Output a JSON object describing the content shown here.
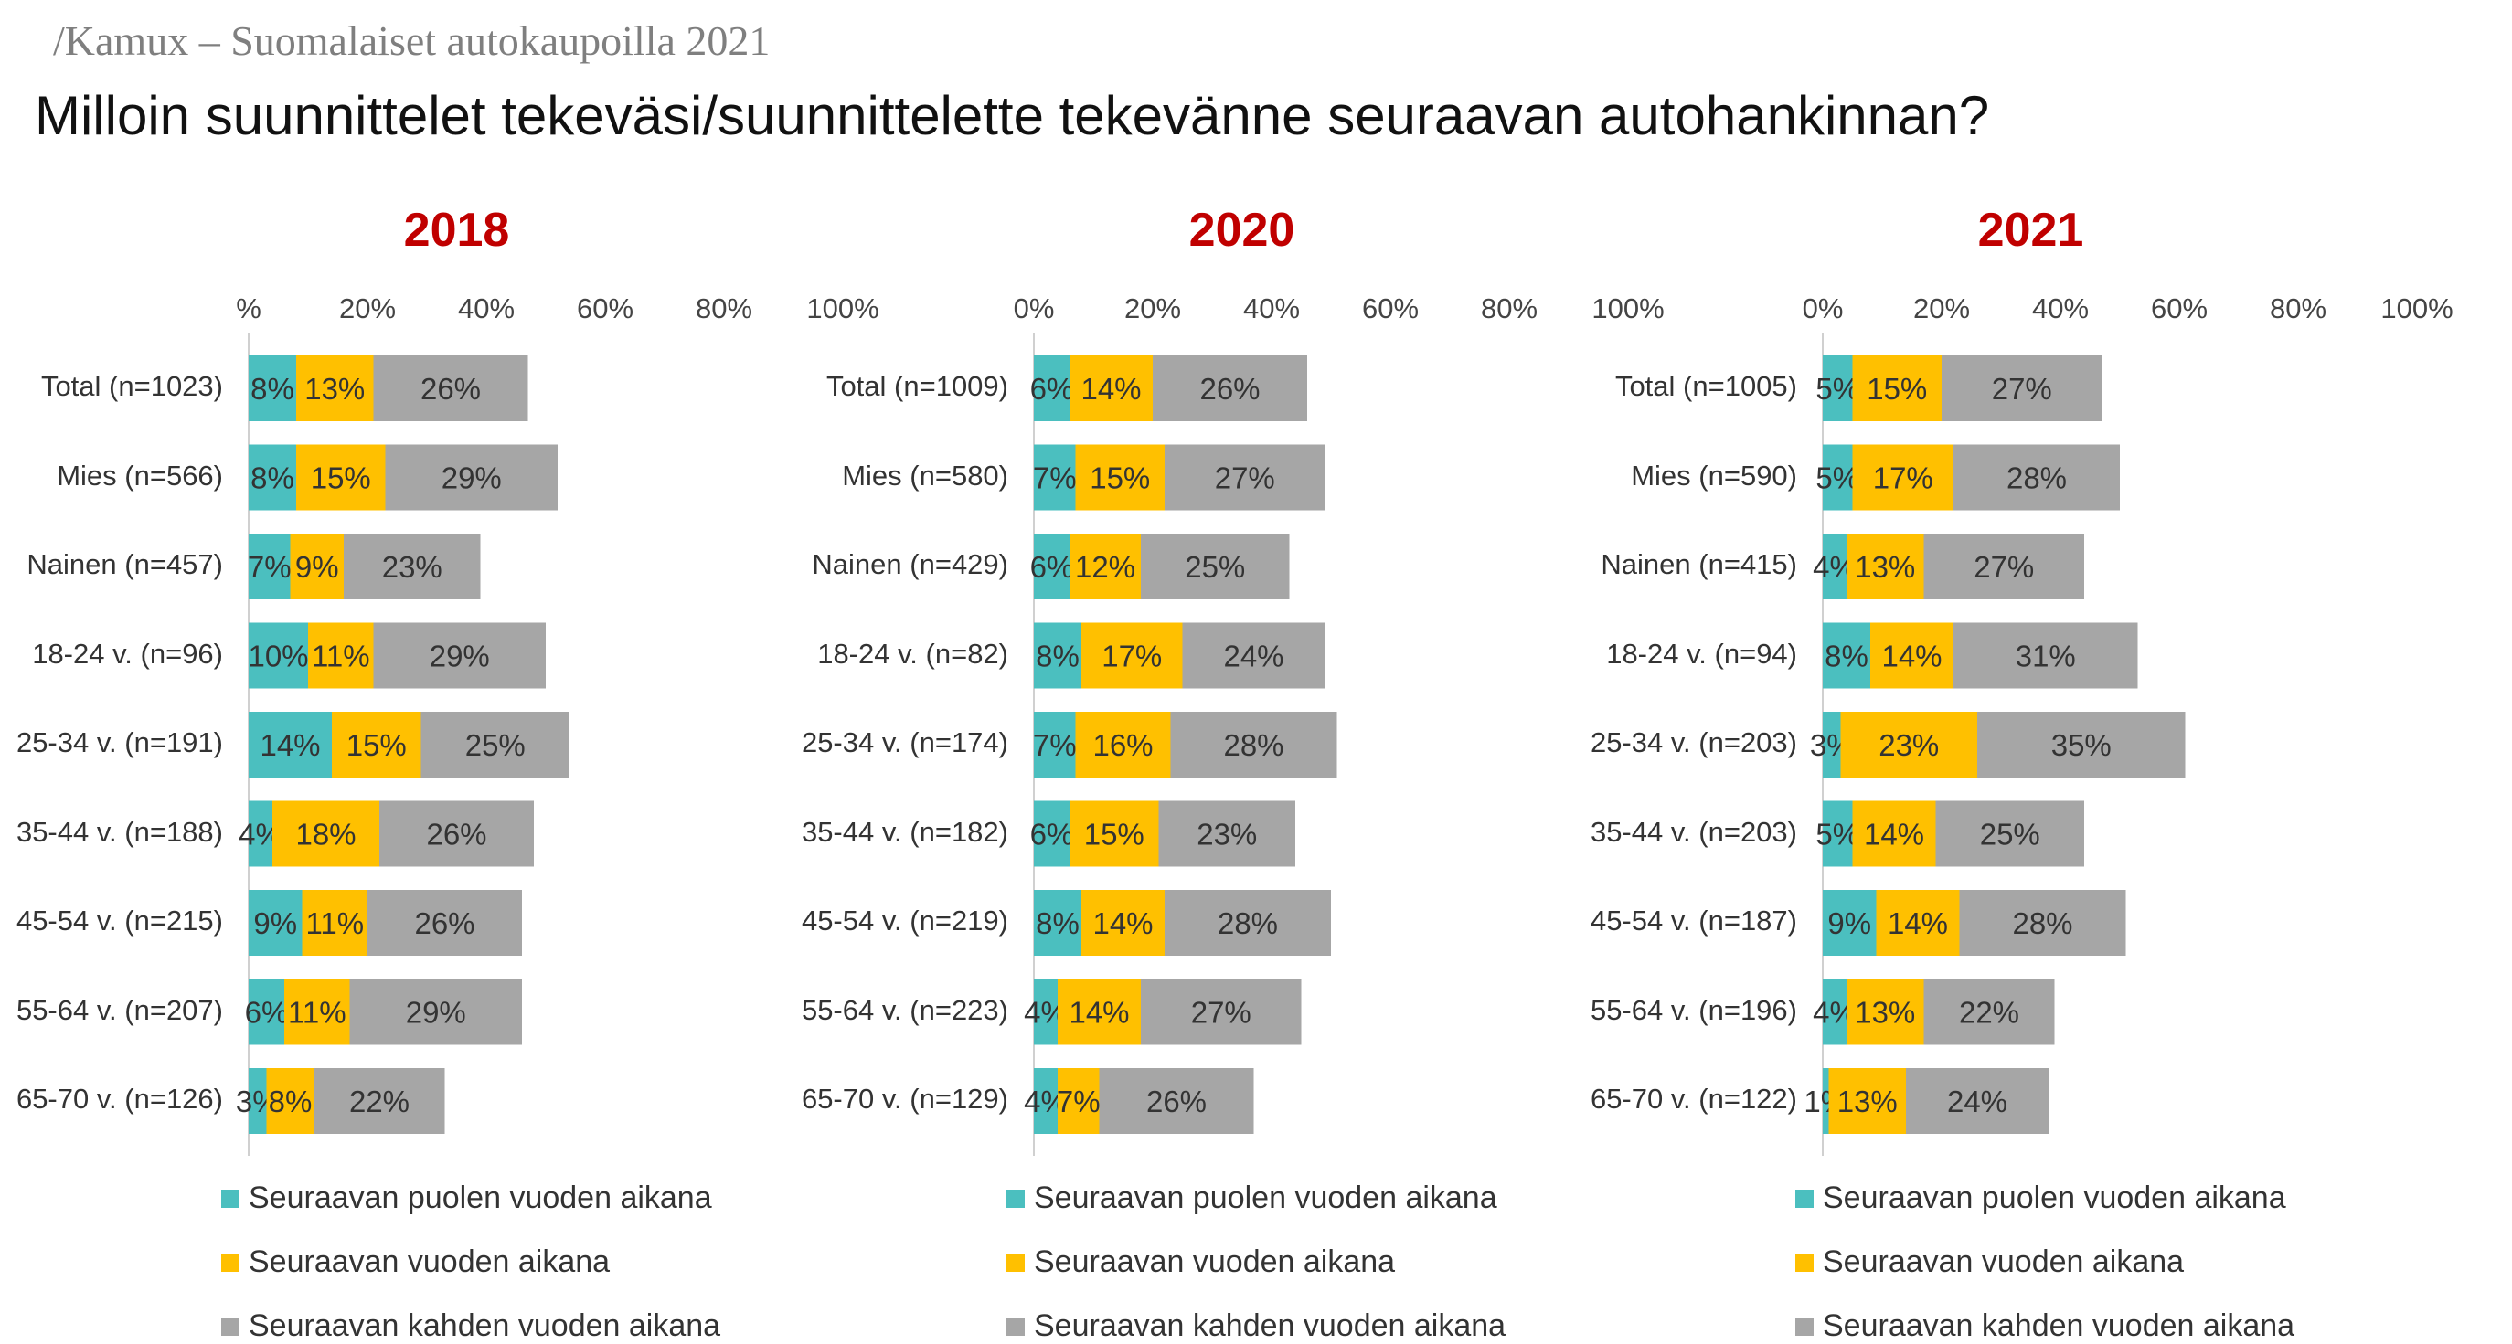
{
  "header": {
    "brand": "/Kamux – Suomalaiset autokaupoilla 2021",
    "title": "Milloin suunnittelet tekeväsi/suunnittelette tekevänne seuraavan autohankinnan?"
  },
  "colors": {
    "half_year": "#4bbfbf",
    "one_year": "#ffc000",
    "two_years": "#a6a6a6",
    "year_title": "#c00000"
  },
  "chart_data": [
    {
      "type": "bar",
      "orientation": "horizontal",
      "stacked": true,
      "title": "2018",
      "xlim": [
        0,
        100
      ],
      "x_ticks": [
        "%",
        "20%",
        "40%",
        "60%",
        "80%",
        "100%"
      ],
      "categories": [
        "Total (n=1023)",
        "Mies (n=566)",
        "Nainen (n=457)",
        "18-24 v. (n=96)",
        "25-34 v. (n=191)",
        "35-44 v. (n=188)",
        "45-54 v. (n=215)",
        "55-64 v. (n=207)",
        "65-70 v. (n=126)"
      ],
      "series": [
        {
          "name": "Seuraavan puolen vuoden aikana",
          "values": [
            8,
            8,
            7,
            10,
            14,
            4,
            9,
            6,
            3
          ]
        },
        {
          "name": "Seuraavan vuoden aikana",
          "values": [
            13,
            15,
            9,
            11,
            15,
            18,
            11,
            11,
            8
          ]
        },
        {
          "name": "Seuraavan kahden vuoden aikana",
          "values": [
            26,
            29,
            23,
            29,
            25,
            26,
            26,
            29,
            22
          ]
        }
      ],
      "legend": "bottom"
    },
    {
      "type": "bar",
      "orientation": "horizontal",
      "stacked": true,
      "title": "2020",
      "xlim": [
        0,
        100
      ],
      "x_ticks": [
        "0%",
        "20%",
        "40%",
        "60%",
        "80%",
        "100%"
      ],
      "categories": [
        "Total (n=1009)",
        "Mies (n=580)",
        "Nainen (n=429)",
        "18-24 v. (n=82)",
        "25-34 v. (n=174)",
        "35-44 v. (n=182)",
        "45-54 v. (n=219)",
        "55-64 v. (n=223)",
        "65-70 v. (n=129)"
      ],
      "series": [
        {
          "name": "Seuraavan puolen vuoden aikana",
          "values": [
            6,
            7,
            6,
            8,
            7,
            6,
            8,
            4,
            4
          ]
        },
        {
          "name": "Seuraavan vuoden aikana",
          "values": [
            14,
            15,
            12,
            17,
            16,
            15,
            14,
            14,
            7
          ]
        },
        {
          "name": "Seuraavan kahden vuoden aikana",
          "values": [
            26,
            27,
            25,
            24,
            28,
            23,
            28,
            27,
            26
          ]
        }
      ],
      "legend": "bottom"
    },
    {
      "type": "bar",
      "orientation": "horizontal",
      "stacked": true,
      "title": "2021",
      "xlim": [
        0,
        100
      ],
      "x_ticks": [
        "0%",
        "20%",
        "40%",
        "60%",
        "80%",
        "100%"
      ],
      "categories": [
        "Total (n=1005)",
        "Mies (n=590)",
        "Nainen (n=415)",
        "18-24 v. (n=94)",
        "25-34 v. (n=203)",
        "35-44 v. (n=203)",
        "45-54 v. (n=187)",
        "55-64 v. (n=196)",
        "65-70 v. (n=122)"
      ],
      "series": [
        {
          "name": "Seuraavan puolen vuoden aikana",
          "values": [
            5,
            5,
            4,
            8,
            3,
            5,
            9,
            4,
            1
          ]
        },
        {
          "name": "Seuraavan vuoden aikana",
          "values": [
            15,
            17,
            13,
            14,
            23,
            14,
            14,
            13,
            13
          ]
        },
        {
          "name": "Seuraavan kahden vuoden aikana",
          "values": [
            27,
            28,
            27,
            31,
            35,
            25,
            28,
            22,
            24
          ]
        }
      ],
      "legend": "bottom"
    }
  ]
}
